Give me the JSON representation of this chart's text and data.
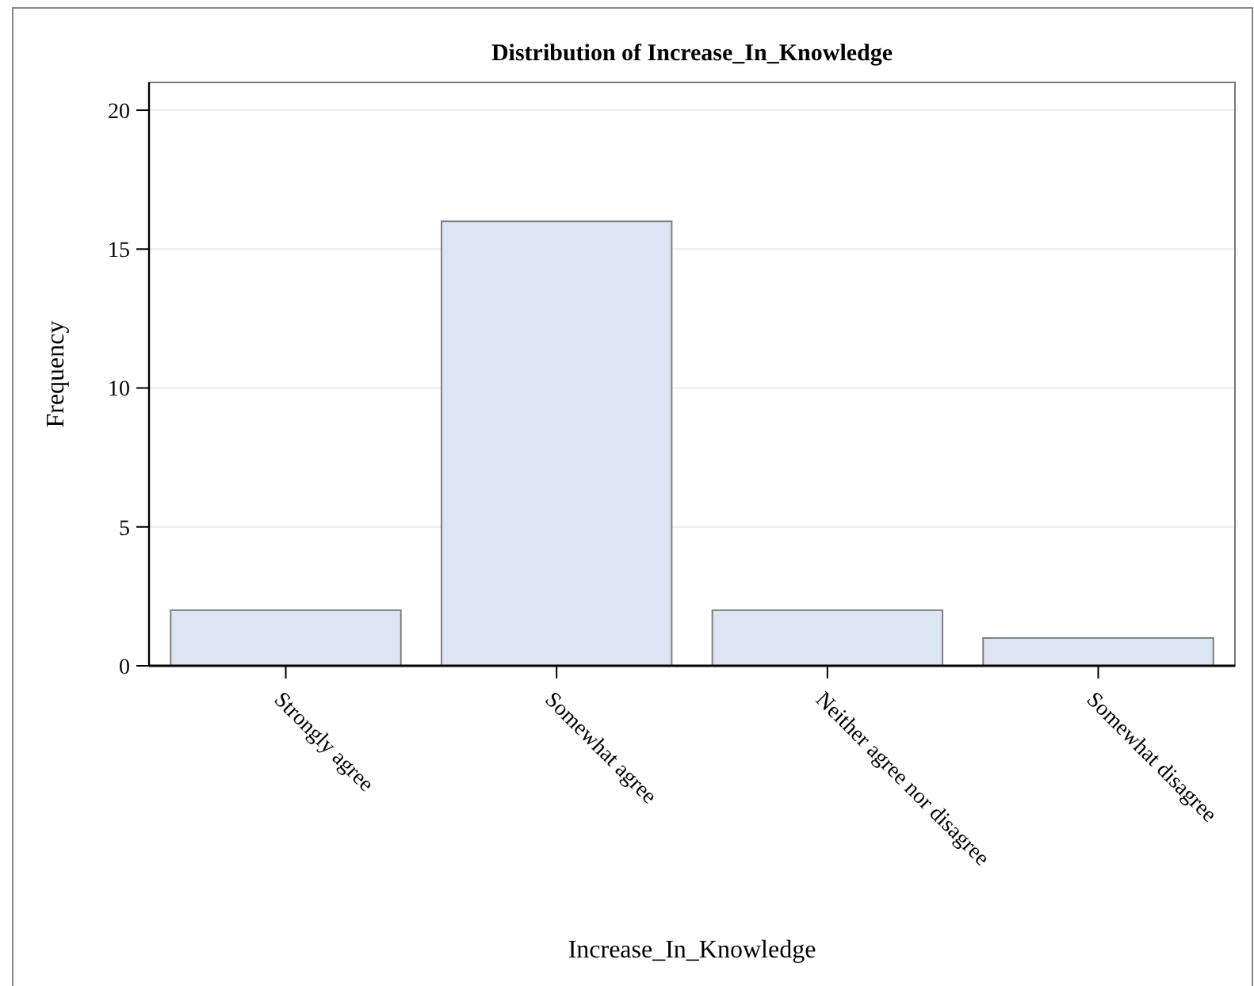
{
  "chart_data": {
    "type": "bar",
    "title": "Distribution of Increase_In_Knowledge",
    "xlabel": "Increase_In_Knowledge",
    "ylabel": "Frequency",
    "categories": [
      "Strongly agree",
      "Somewhat agree",
      "Neither agree nor disagree",
      "Somewhat disagree"
    ],
    "values": [
      2,
      16,
      2,
      1
    ],
    "color": "#dce5f1",
    "ylim": [
      0,
      21
    ],
    "yticks": [
      0,
      5,
      10,
      15,
      20
    ],
    "grid": "y"
  }
}
